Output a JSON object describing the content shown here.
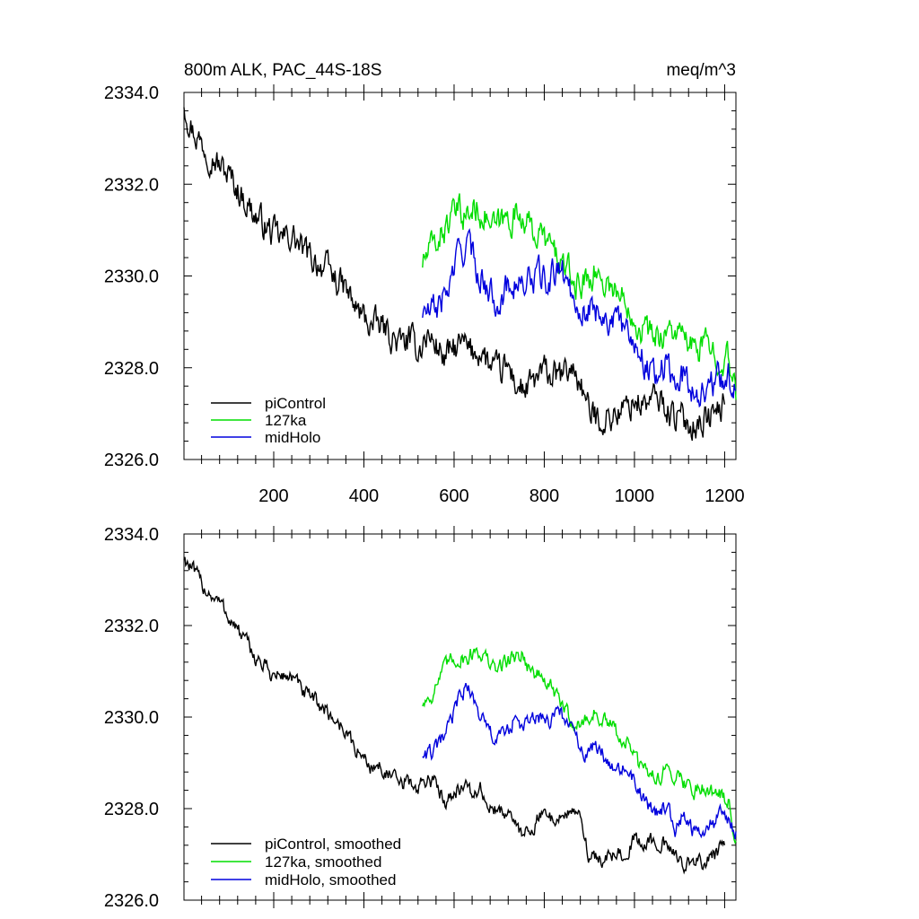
{
  "figure": {
    "title": "800m ALK, PAC_44S-18S",
    "units": "meq/m^3"
  },
  "chart_data": [
    {
      "type": "line",
      "title": "800m ALK, PAC_44S-18S",
      "units_label": "meq/m^3",
      "xlim": [
        1,
        1225
      ],
      "ylim": [
        2326.0,
        2334.0
      ],
      "x_ticks": [
        200,
        400,
        600,
        800,
        1000,
        1200
      ],
      "x_tick_labels": [
        "200",
        "400",
        "600",
        "800",
        "1000",
        "1200"
      ],
      "y_ticks": [
        2326.0,
        2328.0,
        2330.0,
        2332.0,
        2334.0
      ],
      "y_tick_labels": [
        "2326.0",
        "2328.0",
        "2330.0",
        "2332.0",
        "2334.0"
      ],
      "grid": false,
      "legend_position": "bottom-left",
      "series": [
        {
          "name": "piControl",
          "color": "#000000",
          "x": [
            1,
            20,
            40,
            60,
            80,
            100,
            120,
            140,
            160,
            180,
            200,
            220,
            240,
            260,
            280,
            300,
            320,
            340,
            360,
            380,
            400,
            420,
            440,
            460,
            480,
            500,
            520,
            540,
            560,
            580,
            600,
            620,
            640,
            660,
            680,
            700,
            720,
            740,
            760,
            780,
            800,
            820,
            840,
            860,
            880,
            900,
            920,
            940,
            960,
            980,
            1000,
            1020,
            1040,
            1060,
            1080,
            1100,
            1120,
            1140,
            1160,
            1180,
            1200
          ],
          "values": [
            2333.8,
            2333.2,
            2332.9,
            2332.7,
            2332.4,
            2332.2,
            2331.9,
            2331.6,
            2331.3,
            2331.1,
            2330.9,
            2330.8,
            2330.9,
            2330.6,
            2330.4,
            2330.3,
            2330.1,
            2329.9,
            2329.7,
            2329.3,
            2329.1,
            2328.9,
            2328.9,
            2328.7,
            2328.5,
            2328.6,
            2328.4,
            2328.7,
            2328.5,
            2328.2,
            2328.4,
            2328.5,
            2328.3,
            2328.4,
            2328.0,
            2327.9,
            2328.0,
            2327.6,
            2327.5,
            2327.7,
            2327.9,
            2327.8,
            2327.8,
            2328.0,
            2327.7,
            2327.0,
            2326.9,
            2326.9,
            2327.0,
            2327.1,
            2327.3,
            2327.2,
            2327.3,
            2327.3,
            2327.0,
            2326.9,
            2326.8,
            2326.8,
            2326.9,
            2327.0,
            2327.2
          ]
        },
        {
          "name": "127ka",
          "color": "#00dd00",
          "x": [
            530,
            550,
            570,
            590,
            610,
            630,
            650,
            670,
            690,
            710,
            730,
            750,
            770,
            790,
            810,
            830,
            850,
            870,
            890,
            910,
            930,
            950,
            970,
            990,
            1010,
            1030,
            1050,
            1070,
            1090,
            1110,
            1130,
            1150,
            1170,
            1190,
            1210,
            1225
          ],
          "values": [
            2330.3,
            2330.6,
            2330.9,
            2331.2,
            2331.4,
            2331.3,
            2331.5,
            2331.3,
            2331.0,
            2331.2,
            2331.3,
            2331.4,
            2331.0,
            2330.9,
            2330.7,
            2330.4,
            2330.1,
            2329.8,
            2329.9,
            2330.1,
            2329.9,
            2329.8,
            2329.5,
            2329.4,
            2328.9,
            2328.8,
            2328.7,
            2328.8,
            2328.8,
            2328.6,
            2328.4,
            2328.5,
            2328.4,
            2328.3,
            2328.1,
            2327.3
          ]
        },
        {
          "name": "midHolo",
          "color": "#0000dd",
          "x": [
            530,
            550,
            570,
            590,
            610,
            630,
            650,
            670,
            690,
            710,
            730,
            750,
            770,
            790,
            810,
            830,
            850,
            870,
            890,
            910,
            930,
            950,
            970,
            990,
            1010,
            1030,
            1050,
            1070,
            1090,
            1110,
            1130,
            1150,
            1170,
            1190,
            1210,
            1225
          ],
          "values": [
            2329.2,
            2329.2,
            2329.4,
            2329.8,
            2330.5,
            2330.7,
            2330.2,
            2329.8,
            2329.5,
            2329.6,
            2329.9,
            2329.8,
            2329.9,
            2330.0,
            2329.8,
            2330.2,
            2329.9,
            2329.5,
            2329.2,
            2329.3,
            2329.2,
            2329.0,
            2328.9,
            2328.8,
            2328.4,
            2328.0,
            2327.9,
            2328.1,
            2327.6,
            2327.9,
            2327.5,
            2327.5,
            2327.6,
            2327.8,
            2327.8,
            2327.5
          ]
        }
      ]
    },
    {
      "type": "line",
      "xlim": [
        1,
        1225
      ],
      "ylim": [
        2326.0,
        2334.0
      ],
      "x_ticks": [
        200,
        400,
        600,
        800,
        1000,
        1200
      ],
      "y_ticks": [
        2326.0,
        2328.0,
        2330.0,
        2332.0,
        2334.0
      ],
      "y_tick_labels": [
        "2326.0",
        "2328.0",
        "2330.0",
        "2332.0",
        "2334.0"
      ],
      "grid": false,
      "legend_position": "bottom-left",
      "series": [
        {
          "name": "piControl, smoothed",
          "color": "#000000",
          "x": [
            1,
            20,
            40,
            60,
            80,
            100,
            120,
            140,
            160,
            180,
            200,
            220,
            240,
            260,
            280,
            300,
            320,
            340,
            360,
            380,
            400,
            420,
            440,
            460,
            480,
            500,
            520,
            540,
            560,
            580,
            600,
            620,
            640,
            660,
            680,
            700,
            720,
            740,
            760,
            780,
            800,
            820,
            840,
            860,
            880,
            900,
            920,
            940,
            960,
            980,
            1000,
            1020,
            1040,
            1060,
            1080,
            1100,
            1120,
            1140,
            1160,
            1180,
            1200
          ],
          "values": [
            2333.5,
            2333.2,
            2332.9,
            2332.7,
            2332.5,
            2332.2,
            2331.9,
            2331.6,
            2331.3,
            2331.1,
            2330.9,
            2330.9,
            2330.9,
            2330.6,
            2330.4,
            2330.3,
            2330.1,
            2329.9,
            2329.7,
            2329.3,
            2329.1,
            2328.9,
            2328.9,
            2328.7,
            2328.5,
            2328.6,
            2328.4,
            2328.7,
            2328.5,
            2328.2,
            2328.4,
            2328.5,
            2328.3,
            2328.4,
            2328.0,
            2327.9,
            2328.0,
            2327.5,
            2327.5,
            2327.7,
            2327.9,
            2327.8,
            2327.8,
            2328.0,
            2327.7,
            2327.0,
            2326.9,
            2326.9,
            2327.0,
            2327.1,
            2327.3,
            2327.2,
            2327.3,
            2327.3,
            2327.0,
            2326.9,
            2326.8,
            2326.8,
            2326.9,
            2327.0,
            2327.2
          ]
        },
        {
          "name": "127ka, smoothed",
          "color": "#00dd00",
          "x": [
            530,
            550,
            570,
            590,
            610,
            630,
            650,
            670,
            690,
            710,
            730,
            750,
            770,
            790,
            810,
            830,
            850,
            870,
            890,
            910,
            930,
            950,
            970,
            990,
            1010,
            1030,
            1050,
            1070,
            1090,
            1110,
            1130,
            1150,
            1170,
            1190,
            1210,
            1225
          ],
          "values": [
            2330.3,
            2330.5,
            2330.9,
            2331.2,
            2331.3,
            2331.3,
            2331.5,
            2331.3,
            2331.0,
            2331.2,
            2331.3,
            2331.4,
            2331.0,
            2330.9,
            2330.7,
            2330.4,
            2330.1,
            2329.8,
            2329.9,
            2330.1,
            2329.9,
            2329.8,
            2329.5,
            2329.4,
            2328.9,
            2328.8,
            2328.7,
            2328.8,
            2328.8,
            2328.6,
            2328.4,
            2328.5,
            2328.4,
            2328.3,
            2328.1,
            2327.3
          ]
        },
        {
          "name": "midHolo, smoothed",
          "color": "#0000dd",
          "x": [
            530,
            550,
            570,
            590,
            610,
            630,
            650,
            670,
            690,
            710,
            730,
            750,
            770,
            790,
            810,
            830,
            850,
            870,
            890,
            910,
            930,
            950,
            970,
            990,
            1010,
            1030,
            1050,
            1070,
            1090,
            1110,
            1130,
            1150,
            1170,
            1190,
            1210,
            1225
          ],
          "values": [
            2329.2,
            2329.2,
            2329.4,
            2329.8,
            2330.4,
            2330.7,
            2330.2,
            2329.8,
            2329.5,
            2329.6,
            2329.9,
            2329.8,
            2329.9,
            2330.0,
            2329.8,
            2330.2,
            2329.9,
            2329.5,
            2329.2,
            2329.3,
            2329.2,
            2329.0,
            2328.9,
            2328.8,
            2328.4,
            2328.0,
            2327.9,
            2328.1,
            2327.6,
            2327.9,
            2327.5,
            2327.5,
            2327.6,
            2327.8,
            2327.8,
            2327.5
          ]
        }
      ]
    }
  ]
}
